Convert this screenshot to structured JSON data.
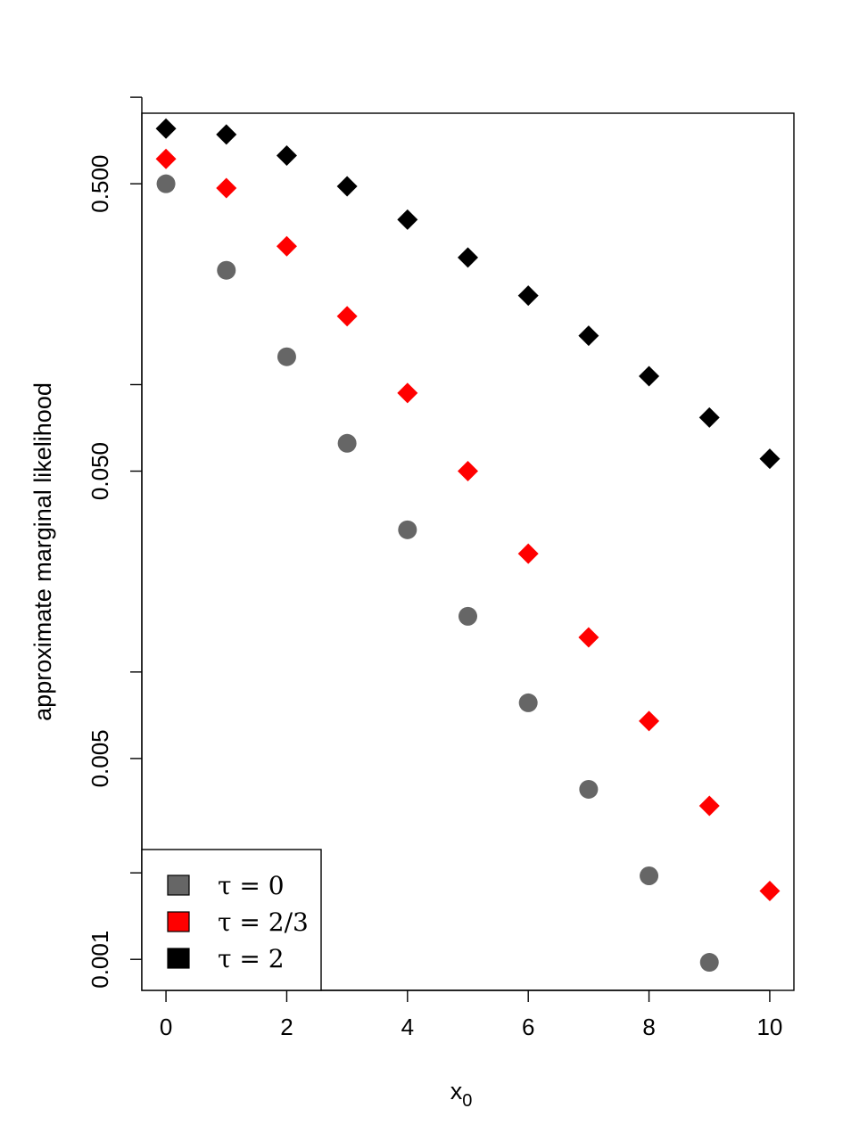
{
  "chart_data": {
    "type": "scatter",
    "title": "",
    "xlabel_main": "x",
    "xlabel_sub": "0",
    "ylabel": "approximate marginal likelihood",
    "y_scale": "log",
    "xlim": [
      -0.4,
      10.4
    ],
    "ylim": [
      0.00078,
      0.88
    ],
    "x_ticks": [
      {
        "value": 0,
        "label": "0"
      },
      {
        "value": 2,
        "label": "2"
      },
      {
        "value": 4,
        "label": "4"
      },
      {
        "value": 6,
        "label": "6"
      },
      {
        "value": 8,
        "label": "8"
      },
      {
        "value": 10,
        "label": "10"
      }
    ],
    "y_ticks": [
      {
        "value": 0.001,
        "label": "0.001"
      },
      {
        "value": 0.002,
        "label": ""
      },
      {
        "value": 0.005,
        "label": "0.005"
      },
      {
        "value": 0.01,
        "label": ""
      },
      {
        "value": 0.05,
        "label": "0.050"
      },
      {
        "value": 0.1,
        "label": ""
      },
      {
        "value": 0.5,
        "label": "0.500"
      },
      {
        "value": 1.0,
        "label": ""
      }
    ],
    "grid": false,
    "legend_position": "bottom-left",
    "series": [
      {
        "name": "τ = 0",
        "legend_label": "τ = 0",
        "color": "#666666",
        "marker": "circle",
        "x": [
          0,
          1,
          2,
          3,
          4,
          5,
          6,
          7,
          8,
          9
        ],
        "y": [
          0.5,
          0.25,
          0.125,
          0.0625,
          0.03125,
          0.015625,
          0.0078125,
          0.00390625,
          0.001953125,
          0.0009765625
        ]
      },
      {
        "name": "τ = 2/3",
        "legend_label": "τ = 2/3",
        "color": "#ff0000",
        "marker": "diamond",
        "x": [
          0,
          1,
          2,
          3,
          4,
          5,
          6,
          7,
          8,
          9,
          10
        ],
        "y": [
          0.61,
          0.483,
          0.303,
          0.173,
          0.0935,
          0.05,
          0.0258,
          0.0132,
          0.00675,
          0.00342,
          0.00173
        ]
      },
      {
        "name": "τ = 2",
        "legend_label": "τ = 2",
        "color": "#000000",
        "marker": "diamond",
        "x": [
          0,
          1,
          2,
          3,
          4,
          5,
          6,
          7,
          8,
          9,
          10
        ],
        "y": [
          0.778,
          0.742,
          0.627,
          0.49,
          0.375,
          0.277,
          0.204,
          0.148,
          0.107,
          0.0768,
          0.0552
        ]
      }
    ]
  }
}
